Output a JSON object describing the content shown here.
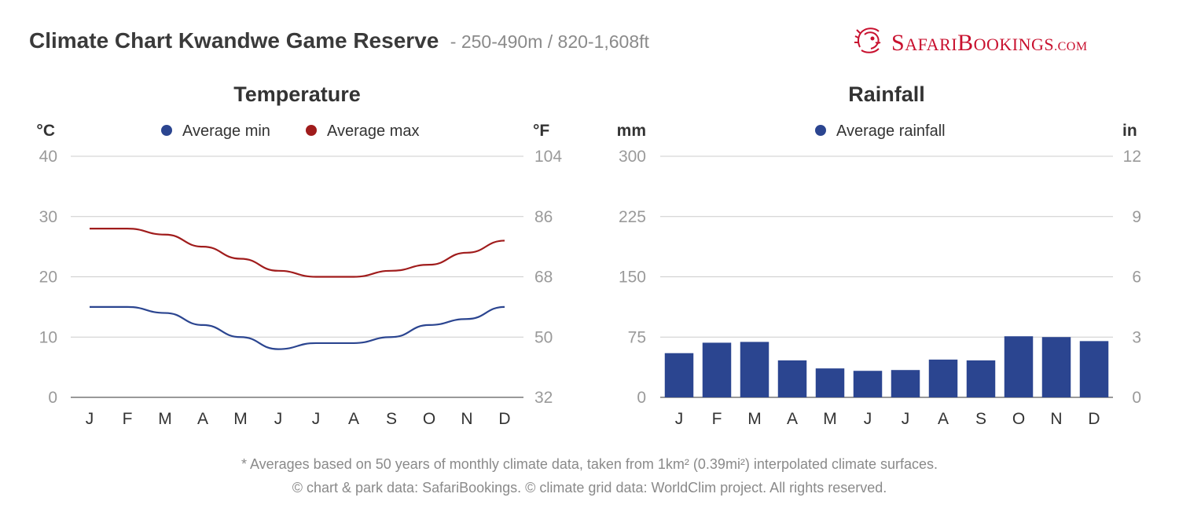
{
  "header": {
    "title": "Climate Chart Kwandwe Game Reserve",
    "subtitle": "- 250-490m / 820-1,608ft"
  },
  "logo": {
    "name": "SafariBookings.com",
    "icon": "lion-head-icon",
    "color": "#c8102e"
  },
  "colors": {
    "min": "#2b4590",
    "max": "#a01c1c",
    "rain": "#2b4590",
    "grid": "#cccccc",
    "tick": "#9a9a9a"
  },
  "chart_data": [
    {
      "type": "line",
      "title": "Temperature",
      "left_unit": "°C",
      "right_unit": "°F",
      "categories": [
        "J",
        "F",
        "M",
        "A",
        "M",
        "J",
        "J",
        "A",
        "S",
        "O",
        "N",
        "D"
      ],
      "left_ticks": [
        "0",
        "10",
        "20",
        "30",
        "40"
      ],
      "right_ticks": [
        "32",
        "50",
        "68",
        "86",
        "104"
      ],
      "ylim": [
        0,
        40
      ],
      "grid": true,
      "legend_position": "top-center",
      "series": [
        {
          "name": "Average min",
          "color": "#2b4590",
          "values": [
            15,
            15,
            14,
            12,
            10,
            8,
            9,
            9,
            10,
            12,
            13,
            15
          ]
        },
        {
          "name": "Average max",
          "color": "#a01c1c",
          "values": [
            28,
            28,
            27,
            25,
            23,
            21,
            20,
            20,
            21,
            22,
            24,
            26
          ]
        }
      ]
    },
    {
      "type": "bar",
      "title": "Rainfall",
      "left_unit": "mm",
      "right_unit": "in",
      "categories": [
        "J",
        "F",
        "M",
        "A",
        "M",
        "J",
        "J",
        "A",
        "S",
        "O",
        "N",
        "D"
      ],
      "left_ticks": [
        "0",
        "75",
        "150",
        "225",
        "300"
      ],
      "right_ticks": [
        "0",
        "3",
        "6",
        "9",
        "12"
      ],
      "ylim": [
        0,
        300
      ],
      "grid": true,
      "legend_position": "top-center",
      "series": [
        {
          "name": "Average rainfall",
          "color": "#2b4590",
          "values": [
            55,
            68,
            69,
            46,
            36,
            33,
            34,
            47,
            46,
            76,
            75,
            70
          ]
        }
      ]
    }
  ],
  "footnotes": [
    "* Averages based on 50 years of monthly climate data, taken from 1km² (0.39mi²) interpolated climate surfaces.",
    "© chart & park data: SafariBookings. © climate grid data: WorldClim project. All rights reserved."
  ]
}
